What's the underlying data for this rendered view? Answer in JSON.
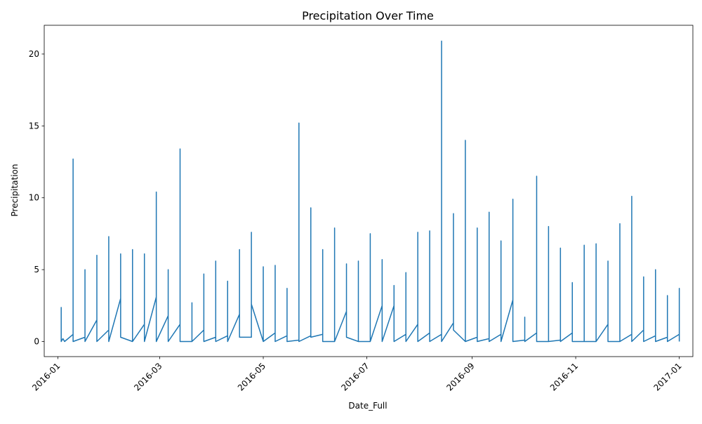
{
  "chart_data": {
    "type": "line",
    "title": "Precipitation Over Time",
    "xlabel": "Date_Full",
    "ylabel": "Precipitation",
    "x_ticks": [
      "2016-01",
      "2016-03",
      "2016-05",
      "2016-07",
      "2016-09",
      "2016-11",
      "2017-01"
    ],
    "y_ticks": [
      0,
      5,
      10,
      15,
      20
    ],
    "xlim": [
      "2015-12-24",
      "2017-01-09"
    ],
    "ylim": [
      -1.05,
      22.0
    ],
    "grid": false,
    "line_color": "#1f77b4",
    "x": [
      "2016-01-03",
      "2016-01-03",
      "2016-01-04",
      "2016-01-05",
      "2016-01-10",
      "2016-01-10",
      "2016-01-10",
      "2016-01-17",
      "2016-01-17",
      "2016-01-17",
      "2016-01-24",
      "2016-01-24",
      "2016-01-24",
      "2016-01-31",
      "2016-01-31",
      "2016-01-31",
      "2016-02-07",
      "2016-02-07",
      "2016-02-07",
      "2016-02-14",
      "2016-02-14",
      "2016-02-14",
      "2016-02-21",
      "2016-02-21",
      "2016-02-21",
      "2016-02-28",
      "2016-02-28",
      "2016-02-28",
      "2016-03-06",
      "2016-03-06",
      "2016-03-06",
      "2016-03-13",
      "2016-03-13",
      "2016-03-13",
      "2016-03-20",
      "2016-03-20",
      "2016-03-20",
      "2016-03-27",
      "2016-03-27",
      "2016-03-27",
      "2016-04-03",
      "2016-04-03",
      "2016-04-03",
      "2016-04-10",
      "2016-04-10",
      "2016-04-10",
      "2016-04-17",
      "2016-04-17",
      "2016-04-17",
      "2016-04-24",
      "2016-04-24",
      "2016-04-24",
      "2016-05-01",
      "2016-05-01",
      "2016-05-01",
      "2016-05-08",
      "2016-05-08",
      "2016-05-08",
      "2016-05-15",
      "2016-05-15",
      "2016-05-15",
      "2016-05-22",
      "2016-05-22",
      "2016-05-22",
      "2016-05-29",
      "2016-05-29",
      "2016-05-29",
      "2016-06-05",
      "2016-06-05",
      "2016-06-05",
      "2016-06-12",
      "2016-06-12",
      "2016-06-12",
      "2016-06-19",
      "2016-06-19",
      "2016-06-19",
      "2016-06-26",
      "2016-06-26",
      "2016-06-26",
      "2016-07-03",
      "2016-07-03",
      "2016-07-03",
      "2016-07-10",
      "2016-07-10",
      "2016-07-10",
      "2016-07-17",
      "2016-07-17",
      "2016-07-17",
      "2016-07-24",
      "2016-07-24",
      "2016-07-24",
      "2016-07-31",
      "2016-07-31",
      "2016-07-31",
      "2016-08-07",
      "2016-08-07",
      "2016-08-07",
      "2016-08-14",
      "2016-08-14",
      "2016-08-14",
      "2016-08-21",
      "2016-08-21",
      "2016-08-21",
      "2016-08-28",
      "2016-08-28",
      "2016-08-28",
      "2016-09-04",
      "2016-09-04",
      "2016-09-04",
      "2016-09-11",
      "2016-09-11",
      "2016-09-11",
      "2016-09-18",
      "2016-09-18",
      "2016-09-18",
      "2016-09-25",
      "2016-09-25",
      "2016-09-25",
      "2016-10-02",
      "2016-10-02",
      "2016-10-02",
      "2016-10-09",
      "2016-10-09",
      "2016-10-09",
      "2016-10-16",
      "2016-10-16",
      "2016-10-16",
      "2016-10-23",
      "2016-10-23",
      "2016-10-23",
      "2016-10-30",
      "2016-10-30",
      "2016-10-30",
      "2016-11-06",
      "2016-11-06",
      "2016-11-06",
      "2016-11-13",
      "2016-11-13",
      "2016-11-13",
      "2016-11-20",
      "2016-11-20",
      "2016-11-20",
      "2016-11-27",
      "2016-11-27",
      "2016-11-27",
      "2016-12-04",
      "2016-12-04",
      "2016-12-04",
      "2016-12-11",
      "2016-12-11",
      "2016-12-11",
      "2016-12-18",
      "2016-12-18",
      "2016-12-18",
      "2016-12-25",
      "2016-12-25",
      "2016-12-25",
      "2017-01-01",
      "2017-01-01",
      "2017-01-01"
    ],
    "y": [
      2.4,
      0.0,
      0.2,
      0.0,
      0.5,
      12.7,
      0.0,
      0.3,
      5.0,
      0.0,
      1.5,
      6.0,
      0.0,
      0.8,
      7.3,
      0.0,
      3.0,
      6.1,
      0.3,
      0.0,
      6.4,
      0.0,
      1.2,
      6.1,
      0.0,
      3.1,
      10.4,
      0.0,
      1.8,
      5.0,
      0.0,
      1.2,
      13.4,
      0.0,
      0.0,
      2.7,
      0.0,
      0.8,
      4.7,
      0.0,
      0.3,
      5.6,
      0.0,
      0.4,
      4.2,
      0.0,
      1.9,
      6.4,
      0.3,
      0.3,
      7.6,
      2.6,
      0.0,
      5.2,
      0.0,
      0.6,
      5.3,
      0.0,
      0.4,
      3.7,
      0.0,
      0.1,
      15.2,
      0.0,
      0.4,
      9.3,
      0.3,
      0.5,
      6.4,
      0.0,
      0.0,
      7.9,
      0.0,
      2.1,
      5.4,
      0.3,
      0.0,
      5.6,
      0.0,
      0.0,
      7.5,
      0.0,
      2.5,
      5.7,
      0.0,
      2.5,
      3.9,
      0.0,
      0.5,
      4.8,
      0.0,
      1.2,
      7.6,
      0.0,
      0.6,
      7.7,
      0.0,
      0.5,
      20.9,
      0.0,
      1.3,
      8.9,
      0.8,
      0.0,
      14.0,
      0.0,
      0.3,
      7.9,
      0.0,
      0.2,
      9.0,
      0.0,
      0.5,
      7.0,
      0.0,
      2.9,
      9.9,
      0.0,
      0.1,
      1.7,
      0.0,
      0.6,
      11.5,
      0.0,
      0.0,
      8.0,
      0.0,
      0.1,
      6.5,
      0.0,
      0.6,
      4.1,
      0.0,
      0.0,
      6.7,
      0.0,
      0.0,
      6.8,
      0.0,
      1.2,
      5.6,
      0.0,
      0.0,
      8.2,
      0.0,
      0.5,
      10.1,
      0.0,
      0.8,
      4.5,
      0.0,
      0.4,
      5.0,
      0.0,
      0.3,
      3.2,
      0.0,
      0.5,
      3.7,
      0.0
    ]
  }
}
